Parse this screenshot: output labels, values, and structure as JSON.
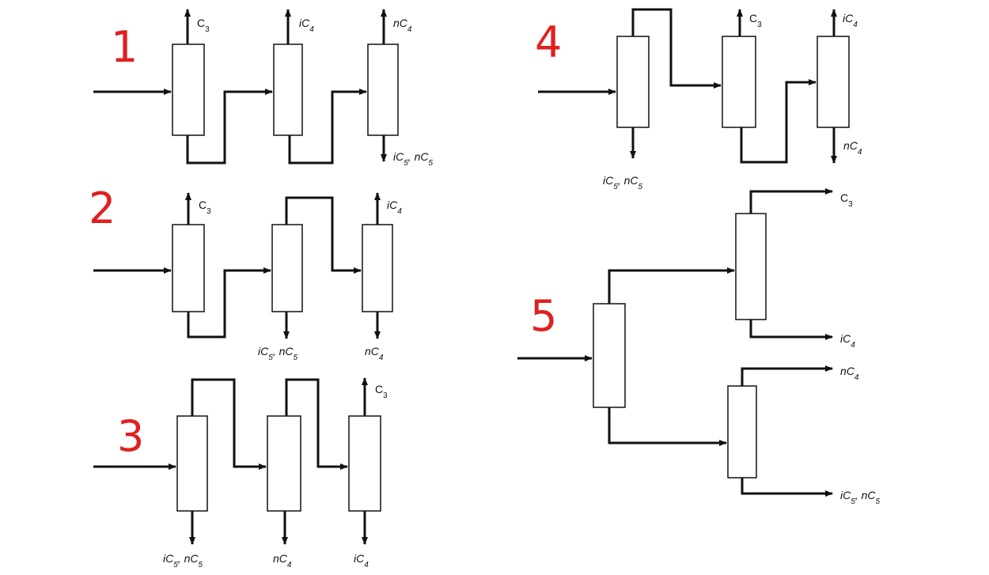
{
  "colors": {
    "line": "#111111",
    "number": "#e02020"
  },
  "schemes": [
    {
      "number": "1",
      "columns": 3,
      "labels": {
        "top_1": "C3",
        "top_2": "iC4",
        "top_3": "nC4",
        "bottom_3": "iC5, nC5"
      }
    },
    {
      "number": "2",
      "columns": 3,
      "labels": {
        "top_1": "C3",
        "top_3": "iC4",
        "bottom_2": "iC5, nC5",
        "bottom_3": "nC4"
      }
    },
    {
      "number": "3",
      "columns": 3,
      "labels": {
        "top_3": "C3",
        "bottom_1": "iC5, nC5",
        "bottom_2": "nC4",
        "bottom_3": "iC4"
      }
    },
    {
      "number": "4",
      "columns": 3,
      "labels": {
        "bottom_1": "iC5, nC5",
        "top_2": "C3",
        "top_3": "iC4",
        "bottom_3": "nC4"
      }
    },
    {
      "number": "5",
      "columns": 3,
      "labels": {
        "upper_top": "C3",
        "upper_bottom": "iC4",
        "lower_top": "nC4",
        "lower_bottom": "iC5, nC5"
      }
    }
  ]
}
